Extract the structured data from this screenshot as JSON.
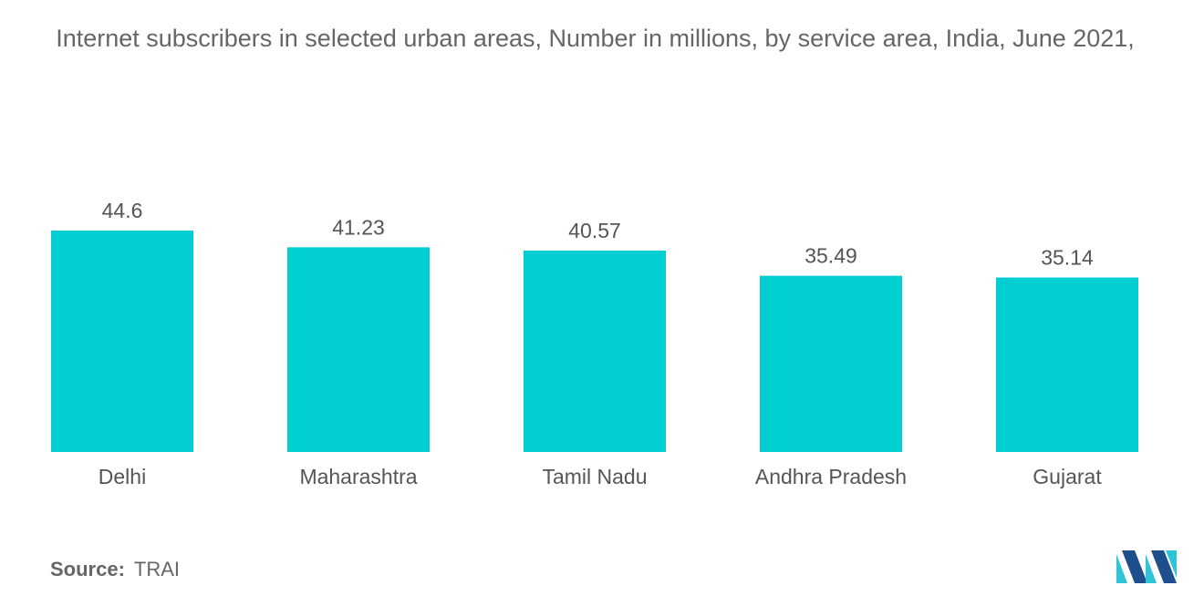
{
  "title": "Internet subscribers in selected urban areas, Number in millions, by service area, India, June 2021,",
  "source": {
    "label": "Source:",
    "value": "TRAI"
  },
  "colors": {
    "bar": "#00CED1",
    "logo_dark": "#1f4e8c",
    "logo_light": "#2fc3d8"
  },
  "logo": {
    "icon": "mordor-intelligence-logo-icon"
  },
  "chart_data": {
    "type": "bar",
    "categories": [
      "Delhi",
      "Maharashtra",
      "Tamil Nadu",
      "Andhra Pradesh",
      "Gujarat"
    ],
    "values": [
      44.6,
      41.23,
      40.57,
      35.49,
      35.14
    ],
    "value_labels": [
      "44.6",
      "41.23",
      "40.57",
      "35.49",
      "35.14"
    ],
    "title": "Internet subscribers in selected urban areas, Number in millions, by service area, India, June 2021,",
    "xlabel": "",
    "ylabel": "",
    "ylim": [
      0,
      50
    ],
    "grid": false,
    "legend": "none"
  }
}
